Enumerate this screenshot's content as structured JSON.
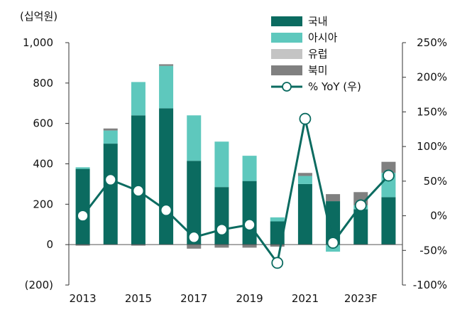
{
  "chart_data": {
    "type": "bar",
    "unit_label": "(십억원)",
    "categories": [
      "2013",
      "2014",
      "2015",
      "2016",
      "2017",
      "2018",
      "2019",
      "2020",
      "2021",
      "2022",
      "2023F",
      "2024F"
    ],
    "x_tick_labels": [
      "2013",
      "2015",
      "2017",
      "2019",
      "2021",
      "2023F"
    ],
    "left_axis": {
      "ylim": [
        -200,
        1000
      ],
      "ticks": [
        -200,
        0,
        200,
        400,
        600,
        800,
        1000
      ],
      "tick_labels": [
        "(200)",
        "0",
        "200",
        "400",
        "600",
        "800",
        "1,000"
      ]
    },
    "right_axis": {
      "ylim": [
        -100,
        250
      ],
      "ticks": [
        -100,
        -50,
        0,
        50,
        100,
        150,
        200,
        250
      ],
      "tick_labels": [
        "-100%",
        "-50%",
        "0%",
        "50%",
        "100%",
        "150%",
        "200%",
        "250%"
      ]
    },
    "series": [
      {
        "name": "국내",
        "kind": "bar",
        "color": "#0b6b60",
        "values": [
          375,
          500,
          640,
          675,
          415,
          285,
          315,
          115,
          300,
          215,
          175,
          235
        ]
      },
      {
        "name": "아시아",
        "kind": "bar",
        "color": "#5ec8bd",
        "values": [
          8,
          65,
          165,
          210,
          225,
          225,
          125,
          20,
          40,
          -35,
          20,
          120
        ]
      },
      {
        "name": "유럽",
        "kind": "bar",
        "color": "#c4c4c4",
        "values": [
          0,
          0,
          0,
          0,
          0,
          0,
          0,
          0,
          0,
          0,
          0,
          0
        ]
      },
      {
        "name": "북미",
        "kind": "bar",
        "color": "#808080",
        "values": [
          -5,
          10,
          -5,
          8,
          -20,
          -15,
          -15,
          -10,
          15,
          35,
          65,
          55
        ]
      },
      {
        "name": "% YoY (우)",
        "kind": "line",
        "color": "#0b6b60",
        "axis": "right",
        "values": [
          0,
          52,
          36,
          8,
          -31,
          -20,
          -13,
          -68,
          140,
          -39,
          15,
          58
        ]
      }
    ],
    "grid": false,
    "legend_position": "top-right"
  }
}
